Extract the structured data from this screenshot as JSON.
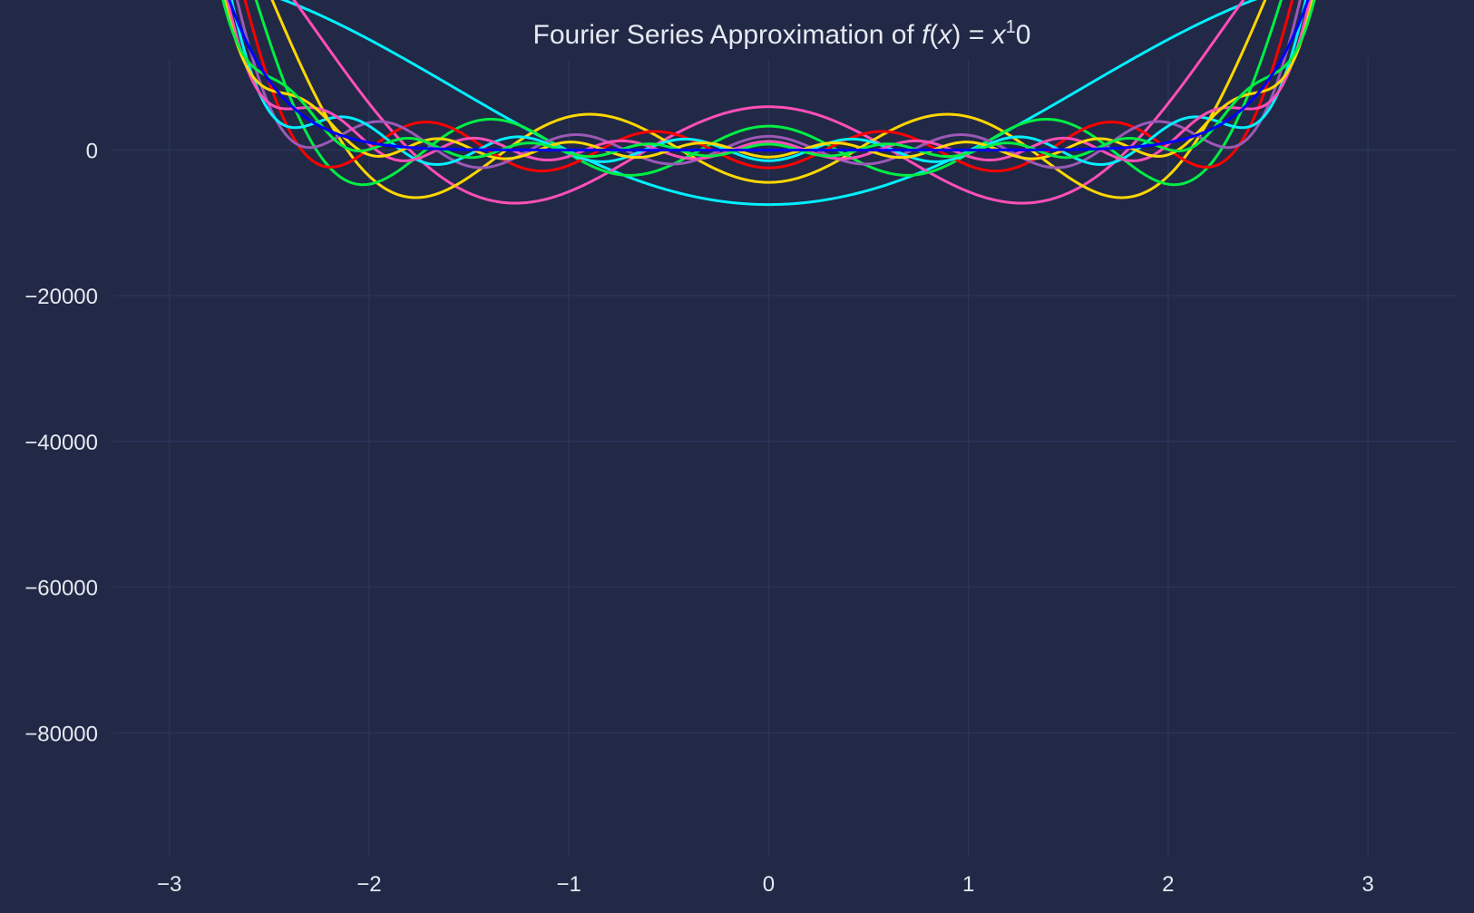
{
  "chart_data": {
    "type": "line",
    "title": "Fourier Series Approximation of f(x) = x¹0",
    "title_parts": {
      "prefix": "Fourier Series Approximation of ",
      "func": "f",
      "arg_open": "(",
      "arg": "x",
      "arg_close": ")",
      "eq": " = ",
      "base": "x",
      "sup": "1",
      "tail": "0"
    },
    "function": "x^10",
    "xlabel": "",
    "ylabel": "",
    "xlim": [
      -3.28,
      3.44
    ],
    "ylim": [
      -97000,
      12500
    ],
    "x_domain": [
      -3.14159,
      3.11
    ],
    "xticks": [
      -3,
      -2,
      -1,
      0,
      1,
      2,
      3
    ],
    "xtick_labels": [
      "−3",
      "−2",
      "−1",
      "0",
      "1",
      "2",
      "3"
    ],
    "yticks": [
      0,
      -20000,
      -40000,
      -60000,
      -80000
    ],
    "ytick_labels": [
      "0",
      "−20000",
      "−40000",
      "−60000",
      "−80000"
    ],
    "grid": true,
    "legend": "none",
    "background": "#212946",
    "grid_color": "#2a3459",
    "text_color": "#e6e9f2",
    "series": [
      {
        "terms": 1,
        "color": "#00f0ff"
      },
      {
        "terms": 2,
        "color": "#ff4fb8"
      },
      {
        "terms": 3,
        "color": "#ffd700"
      },
      {
        "terms": 4,
        "color": "#00ee44"
      },
      {
        "terms": 5,
        "color": "#ff0000"
      },
      {
        "terms": 6,
        "color": "#9b59b6"
      },
      {
        "terms": 7,
        "color": "#00f0ff"
      },
      {
        "terms": 8,
        "color": "#ff4fb8"
      },
      {
        "terms": 9,
        "color": "#ffd700"
      },
      {
        "terms": 10,
        "color": "#00ee44"
      },
      {
        "terms": 200,
        "color": "#0000ff"
      }
    ]
  }
}
